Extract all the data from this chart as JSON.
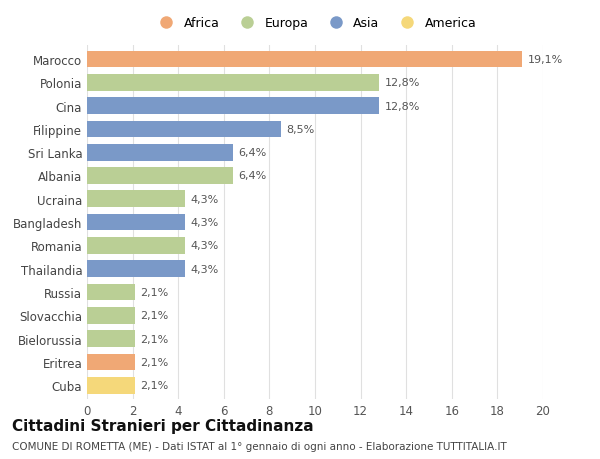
{
  "countries": [
    "Marocco",
    "Polonia",
    "Cina",
    "Filippine",
    "Sri Lanka",
    "Albania",
    "Ucraina",
    "Bangladesh",
    "Romania",
    "Thailandia",
    "Russia",
    "Slovacchia",
    "Bielorussia",
    "Eritrea",
    "Cuba"
  ],
  "values": [
    19.1,
    12.8,
    12.8,
    8.5,
    6.4,
    6.4,
    4.3,
    4.3,
    4.3,
    4.3,
    2.1,
    2.1,
    2.1,
    2.1,
    2.1
  ],
  "labels": [
    "19,1%",
    "12,8%",
    "12,8%",
    "8,5%",
    "6,4%",
    "6,4%",
    "4,3%",
    "4,3%",
    "4,3%",
    "4,3%",
    "2,1%",
    "2,1%",
    "2,1%",
    "2,1%",
    "2,1%"
  ],
  "continents": [
    "Africa",
    "Europa",
    "Asia",
    "Asia",
    "Asia",
    "Europa",
    "Europa",
    "Asia",
    "Europa",
    "Asia",
    "Europa",
    "Europa",
    "Europa",
    "Africa",
    "America"
  ],
  "colors": {
    "Africa": "#F0A875",
    "Europa": "#BACF95",
    "Asia": "#7A99C8",
    "America": "#F5D87A"
  },
  "legend_order": [
    "Africa",
    "Europa",
    "Asia",
    "America"
  ],
  "title": "Cittadini Stranieri per Cittadinanza",
  "subtitle": "COMUNE DI ROMETTA (ME) - Dati ISTAT al 1° gennaio di ogni anno - Elaborazione TUTTITALIA.IT",
  "xlim": [
    0,
    20
  ],
  "xticks": [
    0,
    2,
    4,
    6,
    8,
    10,
    12,
    14,
    16,
    18,
    20
  ],
  "background_color": "#ffffff",
  "grid_color": "#e0e0e0",
  "bar_height": 0.72,
  "title_fontsize": 11,
  "subtitle_fontsize": 7.5,
  "tick_fontsize": 8.5,
  "label_fontsize": 8.0
}
